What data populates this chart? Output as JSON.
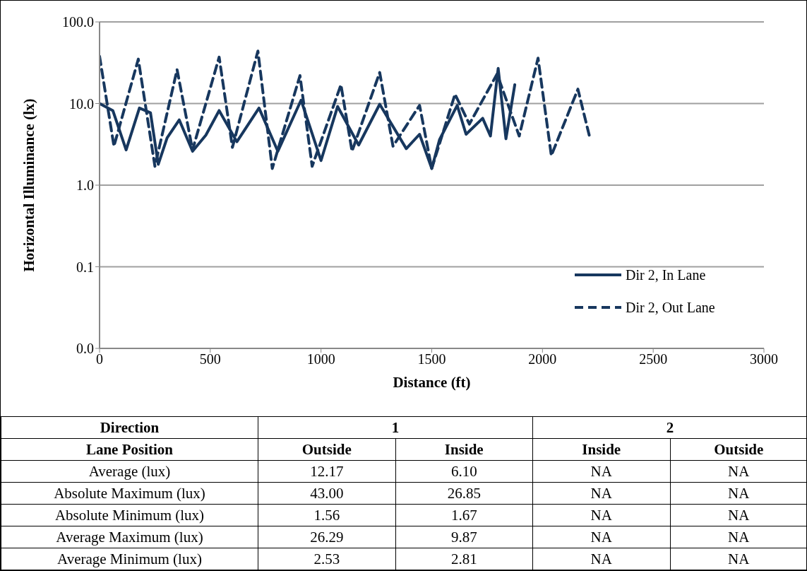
{
  "chart_data": {
    "type": "line",
    "xlabel": "Distance (ft)",
    "ylabel": "Horizontal Illuminance (lx)",
    "log": "y",
    "xlim": [
      0,
      3000
    ],
    "xticks": [
      0,
      500,
      1000,
      1500,
      2000,
      2500,
      3000
    ],
    "ylim": [
      0.01,
      100
    ],
    "yticks": [
      {
        "value": 0.01,
        "label": "0.0"
      },
      {
        "value": 0.1,
        "label": "0.1"
      },
      {
        "value": 1,
        "label": "1.0"
      },
      {
        "value": 10,
        "label": "10.0"
      },
      {
        "value": 100,
        "label": "100.0"
      }
    ],
    "grid": "y",
    "legend": "bottom right",
    "marker": "none",
    "series": [
      {
        "name": "Dir 2, In Lane",
        "color": "#17375e",
        "line_style": "solid",
        "x": [
          0,
          60,
          120,
          180,
          230,
          265,
          305,
          360,
          420,
          480,
          540,
          620,
          720,
          805,
          910,
          1000,
          1075,
          1170,
          1265,
          1385,
          1445,
          1500,
          1535,
          1615,
          1655,
          1730,
          1765,
          1800,
          1835,
          1875
        ],
        "values": [
          10,
          8.2,
          2.7,
          8.8,
          7.7,
          1.8,
          3.8,
          6.3,
          2.6,
          4.1,
          8.2,
          3.4,
          8.8,
          2.6,
          11,
          2.0,
          9.2,
          3.1,
          9.8,
          2.8,
          4.2,
          1.6,
          3.6,
          9.5,
          4.2,
          6.6,
          4.0,
          27,
          3.7,
          17
        ]
      },
      {
        "name": "Dir 2, Out Lane",
        "color": "#17375e",
        "line_style": "dashed",
        "x": [
          0,
          65,
          175,
          250,
          350,
          420,
          540,
          600,
          715,
          780,
          905,
          960,
          1090,
          1140,
          1265,
          1325,
          1445,
          1500,
          1605,
          1670,
          1795,
          1895,
          1980,
          2040,
          2160,
          2215
        ],
        "values": [
          38,
          3.0,
          35,
          1.7,
          26,
          2.7,
          37,
          2.9,
          44,
          1.6,
          22,
          1.7,
          17,
          2.6,
          24,
          3.0,
          9.5,
          1.6,
          13,
          5.6,
          23,
          4.0,
          36,
          2.3,
          15,
          3.7
        ]
      }
    ],
    "annotations": [
      "Direction",
      "1",
      "2",
      "Lane Position",
      "Outside",
      "Inside",
      "Inside",
      "Outside",
      "Average (lux)",
      "12.17",
      "6.10",
      "NA",
      "NA",
      "Absolute Maximum (lux)",
      "43.00",
      "26.85",
      "NA",
      "NA",
      "Absolute Minimum (lux)",
      "1.56",
      "1.67",
      "NA",
      "NA",
      "Average Maximum (lux)",
      "26.29",
      "9.87",
      "NA",
      "NA",
      "Average Minimum (lux)",
      "2.53",
      "2.81",
      "NA",
      "NA"
    ]
  }
}
